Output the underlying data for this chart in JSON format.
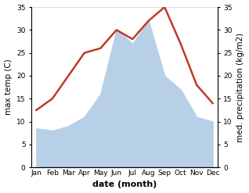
{
  "months": [
    "Jan",
    "Feb",
    "Mar",
    "Apr",
    "May",
    "Jun",
    "Jul",
    "Aug",
    "Sep",
    "Oct",
    "Nov",
    "Dec"
  ],
  "temperature": [
    12.5,
    15.0,
    20.0,
    25.0,
    26.0,
    30.0,
    28.0,
    32.0,
    35.0,
    27.0,
    18.0,
    14.0
  ],
  "precipitation": [
    8.5,
    8.0,
    9.0,
    11.0,
    16.0,
    30.0,
    27.0,
    32.0,
    20.0,
    17.0,
    11.0,
    10.0
  ],
  "temp_color": "#c0392b",
  "precip_color": "#b8cfe8",
  "background_color": "#ffffff",
  "ylim": [
    0,
    35
  ],
  "yticks": [
    0,
    5,
    10,
    15,
    20,
    25,
    30,
    35
  ],
  "xlabel": "date (month)",
  "ylabel_left": "max temp (C)",
  "ylabel_right": "med. precipitation (kg/m2)",
  "label_fontsize": 7.5,
  "tick_fontsize": 6.5,
  "xlabel_fontsize": 8,
  "linewidth": 1.8
}
